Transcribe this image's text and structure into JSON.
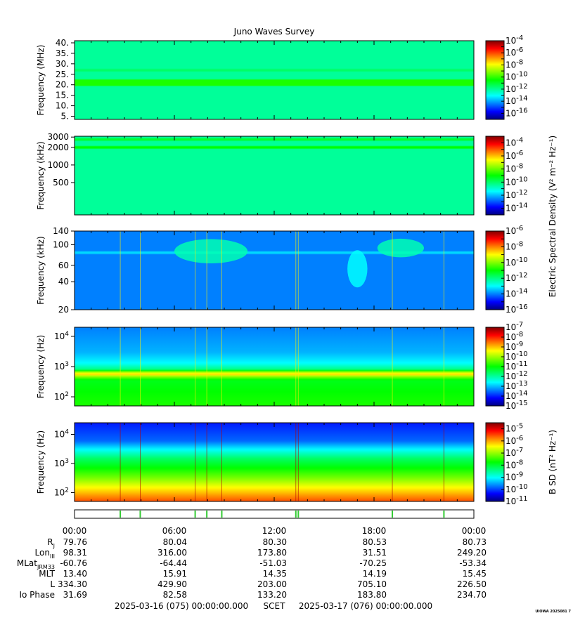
{
  "title": "Juno Waves Survey",
  "stamp": "UIOWA 2025081 7",
  "time": {
    "start_label": "2025-03-16 (075) 00:00:00.000",
    "scet_label": "SCET",
    "end_label": "2025-03-17 (076) 00:00:00.000"
  },
  "efield_colorbar_label": "Electric Spectral Density (V² m⁻² Hz⁻¹)",
  "colors": {
    "colormap": [
      "#00007f",
      "#0000ff",
      "#0080ff",
      "#00ffff",
      "#00ff80",
      "#00ff00",
      "#80ff00",
      "#ffff00",
      "#ff8000",
      "#ff0000",
      "#7f0000"
    ]
  },
  "chart_data": [
    {
      "type": "heatmap",
      "id": "panel-mhz",
      "ylabel": "Frequency (MHz)",
      "yscale": "linear",
      "ylim": [
        3.5,
        41
      ],
      "yticks": [
        {
          "v": 5,
          "label": "5."
        },
        {
          "v": 10,
          "label": "10."
        },
        {
          "v": 15,
          "label": "15."
        },
        {
          "v": 20,
          "label": "20."
        },
        {
          "v": 25,
          "label": "25."
        },
        {
          "v": 30,
          "label": "30."
        },
        {
          "v": 35,
          "label": "35."
        },
        {
          "v": 40,
          "label": "40."
        }
      ],
      "background_level": 0.38,
      "bands": [
        {
          "y": 21,
          "width": 1.3,
          "level": 0.52
        },
        {
          "y": 27,
          "width": 0.6,
          "level": 0.42
        }
      ],
      "colorbar": {
        "range_exp": [
          -17,
          -4
        ],
        "ticks": [
          {
            "exp": -4,
            "label": "10-4"
          },
          {
            "exp": -6,
            "label": "10-6"
          },
          {
            "exp": -8,
            "label": "10-8"
          },
          {
            "exp": -10,
            "label": "10-10"
          },
          {
            "exp": -12,
            "label": "10-12"
          },
          {
            "exp": -14,
            "label": "10-14"
          },
          {
            "exp": -16,
            "label": "10-16"
          }
        ]
      }
    },
    {
      "type": "heatmap",
      "id": "panel-khz-high",
      "ylabel": "Frequency (kHz)",
      "yscale": "log",
      "ylim": [
        140,
        3100
      ],
      "yticks": [
        {
          "v": 500,
          "label": "500"
        },
        {
          "v": 1000,
          "label": "1000"
        },
        {
          "v": 2000,
          "label": "2000"
        },
        {
          "v": 3000,
          "label": "3000"
        }
      ],
      "background_level": 0.38,
      "bands": [
        {
          "y": 2000,
          "width": 0.03,
          "level": 0.5
        },
        {
          "y": 2700,
          "width": 0.02,
          "level": 0.46
        }
      ],
      "colorbar": {
        "range_exp": [
          -15,
          -3
        ],
        "ticks": [
          {
            "exp": -4,
            "label": "10-4"
          },
          {
            "exp": -6,
            "label": "10-6"
          },
          {
            "exp": -8,
            "label": "10-8"
          },
          {
            "exp": -10,
            "label": "10-10"
          },
          {
            "exp": -12,
            "label": "10-12"
          },
          {
            "exp": -14,
            "label": "10-14"
          }
        ]
      }
    },
    {
      "type": "heatmap",
      "id": "panel-khz-low",
      "ylabel": "Frequency (kHz)",
      "yscale": "log",
      "ylim": [
        20,
        140
      ],
      "yticks": [
        {
          "v": 20,
          "label": "20"
        },
        {
          "v": 40,
          "label": "40"
        },
        {
          "v": 60,
          "label": "60"
        },
        {
          "v": 100,
          "label": "100"
        },
        {
          "v": 140,
          "label": "140"
        }
      ],
      "background_level": 0.2,
      "bands": [
        {
          "y": 82,
          "width": 0.012,
          "level": 0.27
        }
      ],
      "blobs": [
        {
          "t": 8.2,
          "f": 85,
          "wt": 2.2,
          "wf": 0.13,
          "level": 0.36
        },
        {
          "t": 19.6,
          "f": 92,
          "wt": 1.4,
          "wf": 0.1,
          "level": 0.36
        },
        {
          "t": 17.0,
          "f": 55,
          "wt": 0.6,
          "wf": 0.2,
          "level": 0.3
        }
      ],
      "colorbar": {
        "range_exp": [
          -16,
          -6
        ],
        "ticks": [
          {
            "exp": -6,
            "label": "10-6"
          },
          {
            "exp": -8,
            "label": "10-8"
          },
          {
            "exp": -10,
            "label": "10-10"
          },
          {
            "exp": -12,
            "label": "10-12"
          },
          {
            "exp": -14,
            "label": "10-14"
          },
          {
            "exp": -16,
            "label": "10-16"
          }
        ]
      }
    },
    {
      "type": "heatmap",
      "id": "panel-hz",
      "ylabel": "Frequency (Hz)",
      "yscale": "log",
      "ylim": [
        50,
        20000
      ],
      "yticks": [
        {
          "v": 100,
          "label": "10",
          "sup": "2"
        },
        {
          "v": 1000,
          "label": "10",
          "sup": "3"
        },
        {
          "v": 10000,
          "label": "10",
          "sup": "4"
        }
      ],
      "profile": [
        {
          "f": 50,
          "level": 0.52
        },
        {
          "f": 150,
          "level": 0.5
        },
        {
          "f": 350,
          "level": 0.48
        },
        {
          "f": 480,
          "level": 0.62
        },
        {
          "f": 560,
          "level": 0.74
        },
        {
          "f": 650,
          "level": 0.64
        },
        {
          "f": 800,
          "level": 0.4
        },
        {
          "f": 1300,
          "level": 0.3
        },
        {
          "f": 3000,
          "level": 0.24
        },
        {
          "f": 20000,
          "level": 0.2
        }
      ],
      "colorbar": {
        "range_exp": [
          -15,
          -7
        ],
        "ticks": [
          {
            "exp": -7,
            "label": "10-7"
          },
          {
            "exp": -8,
            "label": "10-8"
          },
          {
            "exp": -9,
            "label": "10-9"
          },
          {
            "exp": -10,
            "label": "10-10"
          },
          {
            "exp": -11,
            "label": "10-11"
          },
          {
            "exp": -12,
            "label": "10-12"
          },
          {
            "exp": -13,
            "label": "10-13"
          },
          {
            "exp": -14,
            "label": "10-14"
          },
          {
            "exp": -15,
            "label": "10-15"
          }
        ]
      }
    },
    {
      "type": "heatmap",
      "id": "panel-bfield",
      "ylabel": "Frequency (Hz)",
      "yscale": "log",
      "ylim": [
        50,
        25000
      ],
      "yticks": [
        {
          "v": 100,
          "label": "10",
          "sup": "2"
        },
        {
          "v": 1000,
          "label": "10",
          "sup": "3"
        },
        {
          "v": 10000,
          "label": "10",
          "sup": "4"
        }
      ],
      "profile": [
        {
          "f": 50,
          "level": 0.84
        },
        {
          "f": 80,
          "level": 0.78
        },
        {
          "f": 150,
          "level": 0.7
        },
        {
          "f": 300,
          "level": 0.6
        },
        {
          "f": 700,
          "level": 0.5
        },
        {
          "f": 1500,
          "level": 0.42
        },
        {
          "f": 3000,
          "level": 0.3
        },
        {
          "f": 6000,
          "level": 0.18
        },
        {
          "f": 25000,
          "level": 0.12
        }
      ],
      "colorbar": {
        "label": "B SD (nT² Hz⁻¹)",
        "range_exp": [
          -11,
          -4.5
        ],
        "ticks": [
          {
            "exp": -5,
            "label": "10-5"
          },
          {
            "exp": -6,
            "label": "10-6"
          },
          {
            "exp": -7,
            "label": "10-7"
          },
          {
            "exp": -8,
            "label": "10-8"
          },
          {
            "exp": -9,
            "label": "10-9"
          },
          {
            "exp": -10,
            "label": "10-10"
          },
          {
            "exp": -11,
            "label": "10-11"
          }
        ]
      }
    }
  ],
  "spikes_hours": [
    2.75,
    3.95,
    7.25,
    7.95,
    8.85,
    13.3,
    13.45,
    19.1,
    22.2
  ],
  "x_axis": {
    "range_hours": [
      0,
      24
    ],
    "ticks": [
      {
        "h": 0,
        "label": "00:00"
      },
      {
        "h": 6,
        "label": "06:00"
      },
      {
        "h": 12,
        "label": "12:00"
      },
      {
        "h": 18,
        "label": "18:00"
      },
      {
        "h": 24,
        "label": "00:00"
      }
    ]
  },
  "ephemeris": {
    "rows": [
      {
        "label": "R",
        "sub": "J",
        "values": [
          "79.76",
          "80.04",
          "80.30",
          "80.53",
          "80.73"
        ]
      },
      {
        "label": "Lon",
        "sub": "III",
        "values": [
          "98.31",
          "316.00",
          "173.80",
          "31.51",
          "249.20"
        ]
      },
      {
        "label": "MLat",
        "sub": "JRM33",
        "values": [
          "-60.76",
          "-64.44",
          "-51.03",
          "-70.25",
          "-53.34"
        ]
      },
      {
        "label": "MLT",
        "sub": "",
        "values": [
          "13.40",
          "15.91",
          "14.35",
          "14.19",
          "15.45"
        ]
      },
      {
        "label": "L",
        "sub": "",
        "values": [
          "334.30",
          "429.90",
          "203.00",
          "705.10",
          "226.50"
        ]
      },
      {
        "label": "Io Phase",
        "sub": "",
        "values": [
          "31.69",
          "82.58",
          "133.20",
          "183.80",
          "234.70"
        ]
      }
    ]
  }
}
